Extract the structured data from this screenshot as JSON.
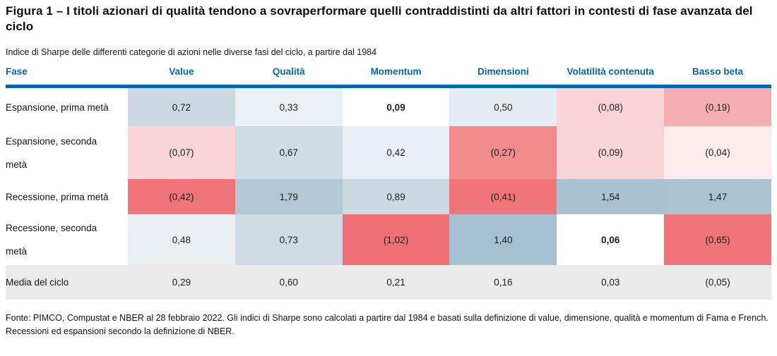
{
  "figure": {
    "title": "Figura 1 – I titoli azionari di qualità tendono a sovraperformare quelli contraddistinti da altri fattori in contesti di fase avanzata del ciclo",
    "subtitle": "Indice di Sharpe delle differenti categorie di azioni nelle diverse fasi del ciclo, a partire dal 1984",
    "footnote": "Fonte: PIMCO, Compustat e NBER al 28 febbraio 2022. Gli indici di Sharpe sono calcolati a partire dal 1984 e basati sulla definizione di value, dimensione, qualità e momentum di Fama e French. Recessioni ed espansioni secondo la definizione di NBER."
  },
  "colors": {
    "accent_blue": "#0069b1",
    "mean_row_gray": "#ebebeb",
    "positive_strong": "#a7c1d0",
    "negative_strong": "#f0757a"
  },
  "table": {
    "columns": [
      "Fase",
      "Value",
      "Qualità",
      "Momentum",
      "Dimensioni",
      "Volatilità contenuta",
      "Basso beta"
    ],
    "rows": [
      {
        "label": "Espansione, prima metà",
        "label_bg": "#ffffff",
        "cells": [
          {
            "v": "0,72",
            "bg": "#cbd9e2",
            "bold": false
          },
          {
            "v": "0,33",
            "bg": "#ebf0f5",
            "bold": false
          },
          {
            "v": "0,09",
            "bg": "#ffffff",
            "bold": true
          },
          {
            "v": "0,50",
            "bg": "#e6edf2",
            "bold": false
          },
          {
            "v": "(0,08)",
            "bg": "#f9d3d6",
            "bold": false
          },
          {
            "v": "(0,19)",
            "bg": "#f5aeb2",
            "bold": false
          }
        ]
      },
      {
        "label": "Espansione, seconda\nmetà",
        "label_bg": "#ffffff",
        "cells": [
          {
            "v": "(0,07)",
            "bg": "#f9d5d7",
            "bold": false
          },
          {
            "v": "0,67",
            "bg": "#cedce4",
            "bold": false
          },
          {
            "v": "0,42",
            "bg": "#e9eff4",
            "bold": false
          },
          {
            "v": "(0,27)",
            "bg": "#f28b8e",
            "bold": false
          },
          {
            "v": "(0,09)",
            "bg": "#f9d5d7",
            "bold": false
          },
          {
            "v": "(0,04)",
            "bg": "#fdeceb",
            "bold": false
          }
        ]
      },
      {
        "label": "Recessione, prima metà",
        "label_bg": "#ffffff",
        "cells": [
          {
            "v": "(0,42)",
            "bg": "#f0757a",
            "bold": false
          },
          {
            "v": "1,79",
            "bg": "#b2c8d4",
            "bold": false
          },
          {
            "v": "0,89",
            "bg": "#cbd9e2",
            "bold": false
          },
          {
            "v": "(0,41)",
            "bg": "#f0757a",
            "bold": false
          },
          {
            "v": "1,54",
            "bg": "#a8c2d1",
            "bold": false
          },
          {
            "v": "1,47",
            "bg": "#aac3d1",
            "bold": false
          }
        ]
      },
      {
        "label": "Recessione, seconda\nmetà",
        "label_bg": "#ffffff",
        "cells": [
          {
            "v": "0,48",
            "bg": "#eaeff3",
            "bold": false
          },
          {
            "v": "0,73",
            "bg": "#cfdce4",
            "bold": false
          },
          {
            "v": "(1,02)",
            "bg": "#ef7175",
            "bold": false
          },
          {
            "v": "1,40",
            "bg": "#a5c0d0",
            "bold": false
          },
          {
            "v": "0,06",
            "bg": "#ffffff",
            "bold": true
          },
          {
            "v": "(0,65)",
            "bg": "#f0757a",
            "bold": false
          }
        ]
      },
      {
        "label": "Media del ciclo",
        "label_bg": "#ebebeb",
        "cells": [
          {
            "v": "0,29",
            "bg": "#ebebeb",
            "bold": false
          },
          {
            "v": "0,60",
            "bg": "#ebebeb",
            "bold": false
          },
          {
            "v": "0,21",
            "bg": "#ebebeb",
            "bold": false
          },
          {
            "v": "0,16",
            "bg": "#ebebeb",
            "bold": false
          },
          {
            "v": "0,03",
            "bg": "#ebebeb",
            "bold": false
          },
          {
            "v": "(0,05)",
            "bg": "#ebebeb",
            "bold": false
          }
        ]
      }
    ]
  },
  "chart_data": {
    "type": "heatmap",
    "title": "Figura 1 – I titoli azionari di qualità tendono a sovraperformare quelli contraddistinti da altri fattori in contesti di fase avanzata del ciclo",
    "subtitle": "Indice di Sharpe delle differenti categorie di azioni nelle diverse fasi del ciclo, a partire dal 1984",
    "row_header": "Fase",
    "rows": [
      "Espansione, prima metà",
      "Espansione, seconda metà",
      "Recessione, prima metà",
      "Recessione, seconda metà",
      "Media del ciclo"
    ],
    "columns": [
      "Value",
      "Qualità",
      "Momentum",
      "Dimensioni",
      "Volatilità contenuta",
      "Basso beta"
    ],
    "values": [
      [
        0.72,
        0.33,
        0.09,
        0.5,
        -0.08,
        -0.19
      ],
      [
        -0.07,
        0.67,
        0.42,
        -0.27,
        -0.09,
        -0.04
      ],
      [
        -0.42,
        1.79,
        0.89,
        -0.41,
        1.54,
        1.47
      ],
      [
        0.48,
        0.73,
        -1.02,
        1.4,
        0.06,
        -0.65
      ],
      [
        0.29,
        0.6,
        0.21,
        0.16,
        0.03,
        -0.05
      ]
    ],
    "number_format": "italian-comma, negatives in parentheses",
    "color_scale": {
      "positive": "blue-gray (darker = higher)",
      "negative": "red-pink (darker = lower)",
      "near_zero": "white"
    },
    "notes": "Fonte: PIMCO, Compustat e NBER al 28 febbraio 2022. Gli indici di Sharpe sono calcolati a partire dal 1984 e basati sulla definizione di value, dimensione, qualità e momentum di Fama e French. Recessioni ed espansioni secondo la definizione di NBER."
  }
}
